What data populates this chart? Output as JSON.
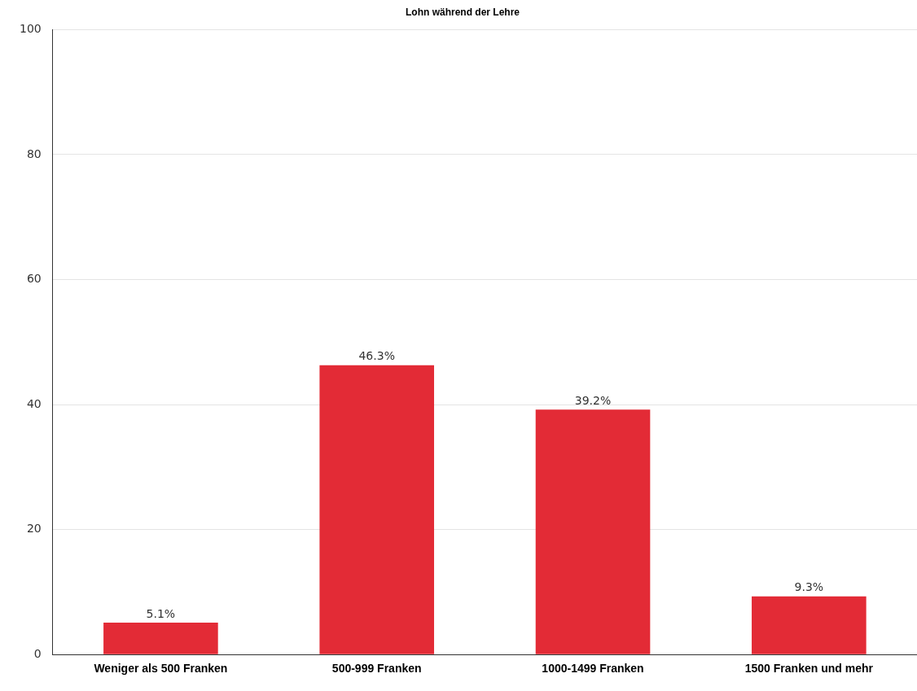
{
  "chart_data": {
    "type": "bar",
    "title": "Lohn während der Lehre",
    "categories": [
      "Weniger als 500 Franken",
      "500-999 Franken",
      "1000-1499 Franken",
      "1500 Franken und mehr"
    ],
    "values": [
      5.1,
      46.3,
      39.2,
      9.3
    ],
    "value_labels": [
      "5.1%",
      "46.3%",
      "39.2%",
      "9.3%"
    ],
    "color": "#e32b36",
    "ylim": [
      0,
      100
    ],
    "yticks": [
      0,
      20,
      40,
      60,
      80,
      100
    ],
    "grid": "y",
    "legend": false
  }
}
